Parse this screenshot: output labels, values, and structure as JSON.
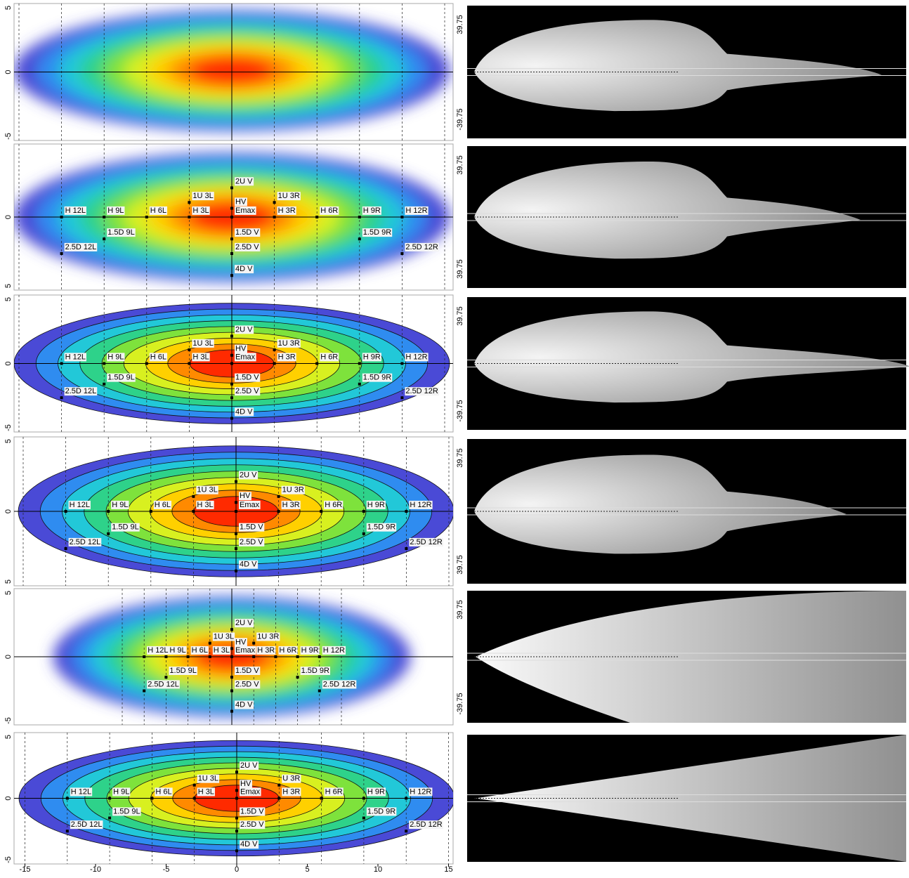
{
  "panels": [
    {
      "left": {
        "yticks": [
          5,
          0,
          -5
        ],
        "points": []
      },
      "right": {
        "yticks": [
          39.75,
          -39.75
        ]
      }
    },
    {
      "left": {
        "yticks": [
          0,
          5
        ],
        "points": [
          "2U V",
          "1U 3L",
          "HV",
          "1U 3R",
          "H 12L",
          "H 9L",
          "H 6L",
          "H 3L",
          "Emax",
          "H 3R",
          "H 6R",
          "H 9R",
          "H 12R",
          "1.5D 9L",
          "1.5D V",
          "1.5D 9R",
          "2.5D 12L",
          "2.5D V",
          "2.5D 12R",
          "4D V"
        ]
      },
      "right": {
        "yticks": [
          39.75,
          39.75
        ]
      }
    },
    {
      "left": {
        "yticks": [
          5,
          0,
          -5
        ],
        "points": [
          "2U V",
          "1U 3L",
          "HV",
          "1U 3R",
          "H 12L",
          "H 9L",
          "H 6L",
          "H 3L",
          "Emax",
          "H 3R",
          "H 6R",
          "H 9R",
          "H 12R",
          "1.5D 9L",
          "1.5D V",
          "1.5D 9R",
          "2.5D 12L",
          "2.5D V",
          "2.5D 12R",
          "4D V"
        ]
      },
      "right": {
        "yticks": [
          39.75,
          -39.75
        ]
      }
    },
    {
      "left": {
        "yticks": [
          5,
          0,
          5
        ],
        "points": [
          "2U V",
          "1U 3L",
          "HV",
          "1U 3R",
          "H 12L",
          "H 9L",
          "H 6L",
          "H 3L",
          "Emax",
          "H 3R",
          "H 6R",
          "H 9R",
          "H 12R",
          "1.5D 9L",
          "1.5D V",
          "1.5D 9R",
          "2.5D 12L",
          "2.5D V",
          "2.5D 12R",
          "4D V"
        ]
      },
      "right": {
        "yticks": [
          39.75,
          39.75
        ]
      }
    },
    {
      "left": {
        "yticks": [
          5,
          0,
          -5
        ],
        "points": [
          "2U V",
          "1U 3L",
          "HV",
          "1U 3R",
          "H 12L",
          "H 9L",
          "H 6L",
          "H 3L",
          "Emax",
          "H 3R",
          "H 6R",
          "H 9R",
          "H 12R",
          "1.5D 9L",
          "1.5D V",
          "1.5D 9R",
          "2.5D 12L",
          "2.5D V",
          "2.5D 12R",
          "4D V"
        ]
      },
      "right": {
        "yticks": [
          39.75,
          -39.75
        ]
      }
    },
    {
      "left": {
        "yticks": [
          5,
          0,
          -5
        ],
        "points": [
          "2U V",
          "1U 3L",
          "HV",
          "U 3R",
          "H 12L",
          "H 9L",
          "H 6L",
          "H 3L",
          "Emax",
          "H 3R",
          "H 6R",
          "H 9R",
          "H 12R",
          "1.5D 9L",
          "1.5D V",
          "1.5D 9R",
          "2.5D 12L",
          "2.5D V",
          "2.5D 12R",
          "4D V"
        ]
      },
      "right": {
        "yticks": []
      }
    }
  ],
  "x_axis": {
    "ticks": [
      -15,
      -10,
      -5,
      0,
      5,
      10,
      15
    ]
  }
}
